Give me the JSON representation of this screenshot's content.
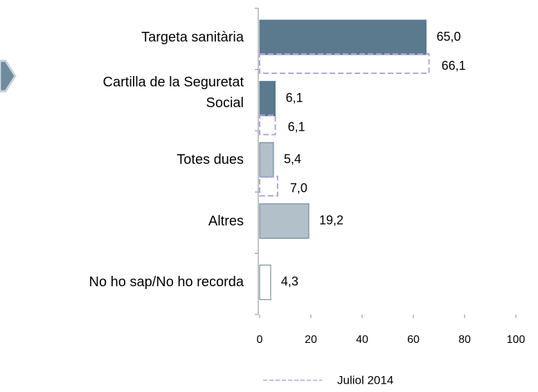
{
  "chart_data": {
    "type": "barh",
    "categories": [
      "Targeta sanitària",
      "Cartilla de la Seguretat Social",
      "Totes dues",
      "Altres",
      "No ho sap/No ho recorda"
    ],
    "series": [
      {
        "colors": [
          "#5b7a8d",
          "#5b7a8d",
          "#b2c0c9",
          "#b2c0c9",
          "#ffffff"
        ],
        "values": [
          65.0,
          6.1,
          5.4,
          19.2,
          4.3
        ],
        "value_labels": [
          "65,0",
          "6,1",
          "5,4",
          "19,2",
          "4,3"
        ]
      },
      {
        "name": "Juliol 2014",
        "color": "#a9a6e2",
        "values": [
          66.1,
          6.1,
          7.0,
          null,
          null
        ],
        "value_labels": [
          "66,1",
          "6,1",
          "7,0",
          null,
          null
        ]
      }
    ],
    "xlim": [
      0,
      100
    ],
    "xticks": [
      0,
      20,
      40,
      60,
      80,
      100
    ]
  }
}
